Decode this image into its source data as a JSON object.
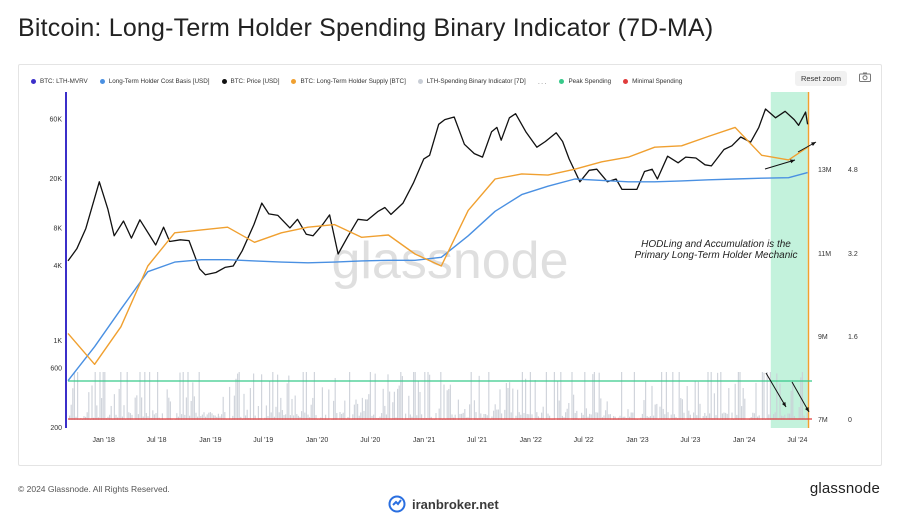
{
  "title": "Bitcoin: Long-Term Holder Spending Binary Indicator (7D-MA)",
  "legend": [
    {
      "label": "BTC: LTH-MVRV",
      "color": "#3b2fc9"
    },
    {
      "label": "Long-Term Holder Cost Basis [USD]",
      "color": "#4a90e2"
    },
    {
      "label": "BTC: Price [USD]",
      "color": "#111111"
    },
    {
      "label": "BTC: Long-Term Holder Supply [BTC]",
      "color": "#f0a030"
    },
    {
      "label": "LTH-Spending Binary Indicator [7D]",
      "color": "#c9ced6"
    },
    {
      "label": "Peak Spending",
      "color": "#37c98a"
    },
    {
      "label": "Minimal Spending",
      "color": "#e03b3b"
    }
  ],
  "legend_more": "...",
  "reset_zoom": "Reset zoom",
  "annotation": [
    "HODLing and Accumulation is the",
    "Primary Long-Term Holder Mechanic"
  ],
  "footer": "© 2024 Glassnode. All Rights Reserved.",
  "brand": "glassnode",
  "watermark": "glassnode",
  "site": "iranbroker.net",
  "chart_data": {
    "type": "line",
    "y_left_ticks": [
      "60K",
      "20K",
      "8K",
      "4K",
      "1K",
      "600",
      "200"
    ],
    "y_right_supply_ticks": [
      "13M",
      "11M",
      "9M",
      "7M"
    ],
    "y_right_indicator_ticks": [
      "4.8",
      "3.2",
      "1.6",
      "0"
    ],
    "x_ticks": [
      "Jan '18",
      "Jul '18",
      "Jan '19",
      "Jul '19",
      "Jan '20",
      "Jul '20",
      "Jan '21",
      "Jul '21",
      "Jan '22",
      "Jul '22",
      "Jan '23",
      "Jul '23",
      "Jan '24",
      "Jul '24"
    ],
    "y_scale": "log",
    "ylim": [
      200,
      100000
    ],
    "series": [
      {
        "name": "BTC: Price [USD]",
        "color": "#111111",
        "x": [
          "2017-09-01",
          "2017-10-01",
          "2017-11-01",
          "2017-12-17",
          "2018-01-15",
          "2018-02-06",
          "2018-03-10",
          "2018-04-06",
          "2018-05-05",
          "2018-06-28",
          "2018-07-25",
          "2018-08-15",
          "2018-09-20",
          "2018-10-20",
          "2018-11-25",
          "2018-12-15",
          "2019-01-20",
          "2019-02-20",
          "2019-03-20",
          "2019-04-20",
          "2019-05-30",
          "2019-06-26",
          "2019-07-20",
          "2019-08-20",
          "2019-09-30",
          "2019-10-26",
          "2019-11-25",
          "2019-12-18",
          "2020-01-20",
          "2020-02-13",
          "2020-03-13",
          "2020-04-15",
          "2020-05-20",
          "2020-06-20",
          "2020-07-28",
          "2020-08-20",
          "2020-09-10",
          "2020-10-21",
          "2020-11-25",
          "2020-12-31",
          "2021-01-20",
          "2021-02-20",
          "2021-03-13",
          "2021-04-14",
          "2021-05-19",
          "2021-06-22",
          "2021-07-20",
          "2021-08-20",
          "2021-09-07",
          "2021-09-22",
          "2021-10-20",
          "2021-11-10",
          "2021-12-15",
          "2022-01-22",
          "2022-02-20",
          "2022-03-29",
          "2022-04-20",
          "2022-05-12",
          "2022-06-18",
          "2022-07-20",
          "2022-08-15",
          "2022-09-20",
          "2022-10-20",
          "2022-11-09",
          "2022-12-30",
          "2023-01-25",
          "2023-02-20",
          "2023-03-10",
          "2023-04-14",
          "2023-05-20",
          "2023-06-15",
          "2023-07-20",
          "2023-08-20",
          "2023-09-11",
          "2023-10-24",
          "2023-11-20",
          "2023-12-20",
          "2024-01-23",
          "2024-02-20",
          "2024-03-14",
          "2024-04-17",
          "2024-05-20",
          "2024-06-20",
          "2024-07-05",
          "2024-07-29",
          "2024-08-05"
        ],
        "y": [
          4400,
          5500,
          8000,
          19000,
          11500,
          7000,
          9200,
          6700,
          9400,
          5900,
          8200,
          6300,
          6500,
          6400,
          3800,
          3400,
          3550,
          3900,
          4000,
          5300,
          8600,
          12800,
          10500,
          10200,
          8100,
          9500,
          7200,
          7000,
          8600,
          10300,
          5000,
          6900,
          9500,
          9300,
          11000,
          11800,
          10400,
          12800,
          18500,
          29000,
          31000,
          55000,
          60000,
          63000,
          38000,
          32000,
          30000,
          48000,
          52000,
          41000,
          62000,
          67000,
          48000,
          36000,
          40000,
          47000,
          40000,
          29000,
          19000,
          23500,
          24000,
          19000,
          20000,
          16500,
          16500,
          23000,
          24000,
          20000,
          30500,
          27000,
          30000,
          29500,
          26000,
          25500,
          34500,
          37000,
          43500,
          39500,
          52000,
          73000,
          62000,
          70000,
          60000,
          54000,
          69000,
          55000
        ]
      },
      {
        "name": "Long-Term Holder Cost Basis [USD]",
        "color": "#4a90e2",
        "x": [
          "2017-09-01",
          "2017-12-01",
          "2018-03-01",
          "2018-06-01",
          "2018-09-01",
          "2018-12-01",
          "2019-03-01",
          "2019-06-01",
          "2019-09-01",
          "2019-12-01",
          "2020-03-01",
          "2020-06-01",
          "2020-09-01",
          "2020-12-01",
          "2021-03-01",
          "2021-06-01",
          "2021-09-01",
          "2021-12-01",
          "2022-03-01",
          "2022-06-01",
          "2022-09-01",
          "2022-12-01",
          "2023-03-01",
          "2023-06-01",
          "2023-09-01",
          "2023-12-01",
          "2024-03-01",
          "2024-06-01",
          "2024-08-05"
        ],
        "y": [
          480,
          900,
          1800,
          3600,
          4300,
          4500,
          4500,
          4400,
          4300,
          4250,
          4300,
          4400,
          4450,
          4450,
          4700,
          7000,
          11000,
          15000,
          17500,
          20000,
          19500,
          19000,
          19000,
          19300,
          19700,
          20000,
          20300,
          20500,
          22500
        ]
      },
      {
        "name": "BTC: Long-Term Holder Supply [BTC]",
        "color": "#f0a030",
        "x": [
          "2017-09-01",
          "2017-12-01",
          "2018-03-01",
          "2018-06-01",
          "2018-09-01",
          "2018-12-01",
          "2019-03-01",
          "2019-06-01",
          "2019-09-01",
          "2019-12-01",
          "2020-03-01",
          "2020-06-01",
          "2020-09-01",
          "2020-12-01",
          "2021-03-01",
          "2021-06-01",
          "2021-09-01",
          "2021-12-01",
          "2022-03-01",
          "2022-06-01",
          "2022-09-01",
          "2022-12-01",
          "2023-03-01",
          "2023-06-01",
          "2023-09-01",
          "2023-12-01",
          "2024-03-01",
          "2024-06-01",
          "2024-08-05"
        ],
        "y": [
          1150,
          650,
          1300,
          4000,
          7400,
          7800,
          8200,
          6200,
          7400,
          8200,
          8600,
          6800,
          7100,
          5000,
          4000,
          11200,
          20000,
          22000,
          21500,
          24000,
          27500,
          30000,
          36000,
          37000,
          44000,
          52000,
          31000,
          28500,
          36000
        ]
      }
    ],
    "binary_indicator": {
      "name": "LTH-Spending Binary Indicator [7D]",
      "color": "#c9ced6",
      "range": [
        0,
        14
      ]
    },
    "reference_lines": [
      {
        "name": "Peak Spending",
        "color": "#37c98a",
        "value": 12.5
      },
      {
        "name": "Minimal Spending",
        "color": "#e03b3b",
        "value": 0.5
      }
    ],
    "highlight_region": {
      "from": "2024-04-01",
      "to": "2024-08-05",
      "color": "#b9f0d6"
    }
  }
}
